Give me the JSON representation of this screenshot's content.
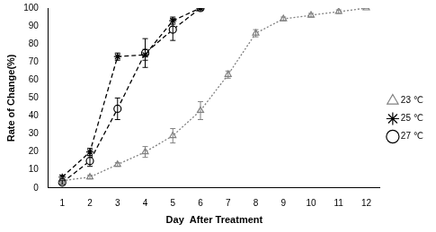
{
  "chart_data": {
    "type": "line",
    "x_label": "Day  After Treatment",
    "y_label": "Rate of Change(%)",
    "x": [
      1,
      2,
      3,
      4,
      5,
      6,
      7,
      8,
      9,
      10,
      11,
      12
    ],
    "xlim": [
      0.5,
      12.5
    ],
    "xticks": [
      1,
      2,
      3,
      4,
      5,
      6,
      7,
      8,
      9,
      10,
      11,
      12
    ],
    "ylim": [
      0,
      100
    ],
    "yticks": [
      0,
      10,
      20,
      30,
      40,
      50,
      60,
      70,
      80,
      90,
      100
    ],
    "grid": false,
    "legend": "right",
    "series": [
      {
        "name": "23 ℃",
        "color": "#808080",
        "marker": "triangle",
        "line_style": "dotted",
        "values": [
          4,
          6,
          13,
          20,
          29,
          43,
          63,
          86,
          94,
          96,
          98,
          100
        ],
        "errors": [
          1,
          1,
          1,
          3,
          4,
          5,
          2,
          2,
          1,
          1,
          1,
          0
        ]
      },
      {
        "name": "25 ℃",
        "color": "#000000",
        "marker": "asterisk",
        "line_style": "dashed",
        "values": [
          6,
          20,
          73,
          74,
          93,
          100,
          null,
          null,
          null,
          null,
          null,
          null
        ],
        "errors": [
          1,
          2,
          2,
          3,
          2,
          0,
          null,
          null,
          null,
          null,
          null,
          null
        ]
      },
      {
        "name": "27 ℃",
        "color": "#000000",
        "marker": "circle",
        "line_style": "dashed",
        "values": [
          3,
          15,
          44,
          75,
          88,
          100,
          null,
          null,
          null,
          null,
          null,
          null
        ],
        "errors": [
          1,
          3,
          6,
          8,
          6,
          1,
          null,
          null,
          null,
          null,
          null,
          null
        ]
      }
    ]
  }
}
